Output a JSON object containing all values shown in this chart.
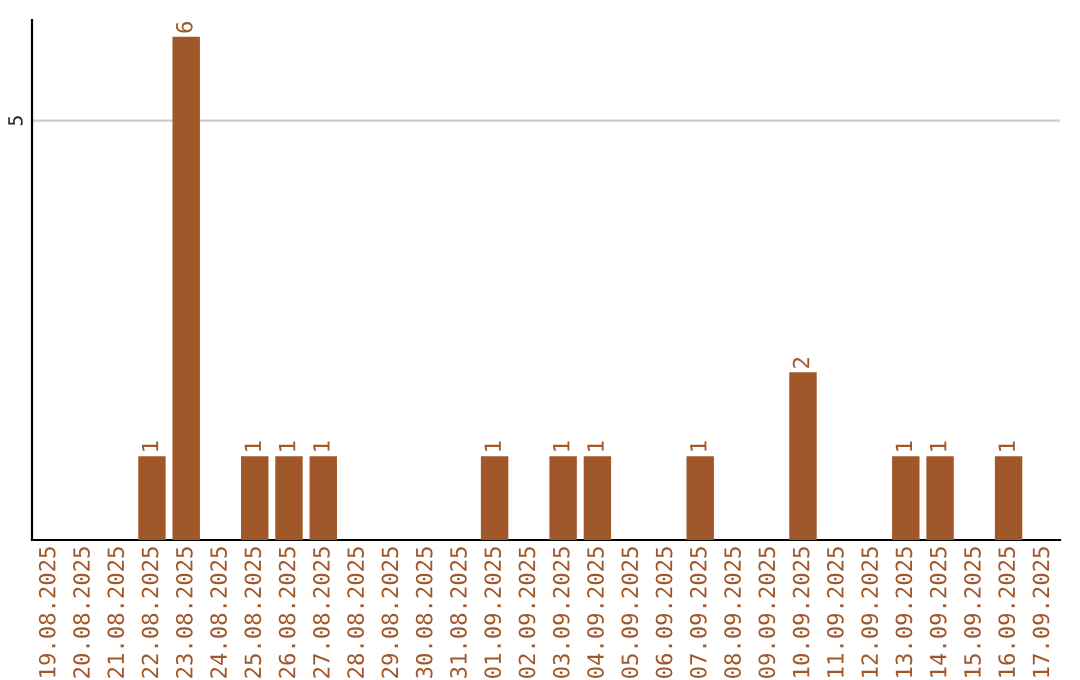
{
  "chart_data": {
    "type": "bar",
    "categories": [
      "19.08.2025",
      "20.08.2025",
      "21.08.2025",
      "22.08.2025",
      "23.08.2025",
      "24.08.2025",
      "25.08.2025",
      "26.08.2025",
      "27.08.2025",
      "28.08.2025",
      "29.08.2025",
      "30.08.2025",
      "31.08.2025",
      "01.09.2025",
      "02.09.2025",
      "03.09.2025",
      "04.09.2025",
      "05.09.2025",
      "06.09.2025",
      "07.09.2025",
      "08.09.2025",
      "09.09.2025",
      "10.09.2025",
      "11.09.2025",
      "12.09.2025",
      "13.09.2025",
      "14.09.2025",
      "15.09.2025",
      "16.09.2025",
      "17.09.2025"
    ],
    "values": [
      0,
      0,
      0,
      1,
      6,
      0,
      1,
      1,
      1,
      0,
      0,
      0,
      0,
      1,
      0,
      1,
      1,
      0,
      0,
      1,
      0,
      0,
      2,
      0,
      0,
      1,
      1,
      0,
      1,
      0
    ],
    "value_labels": [
      null,
      null,
      null,
      "1",
      "6",
      null,
      "1",
      "1",
      "1",
      null,
      null,
      null,
      null,
      "1",
      null,
      "1",
      "1",
      null,
      null,
      "1",
      null,
      null,
      "2",
      null,
      null,
      "1",
      "1",
      null,
      "1",
      null
    ],
    "color": "#a0572a",
    "ylim": [
      0,
      6.2
    ],
    "yticks": [
      5
    ],
    "grid": "y"
  }
}
